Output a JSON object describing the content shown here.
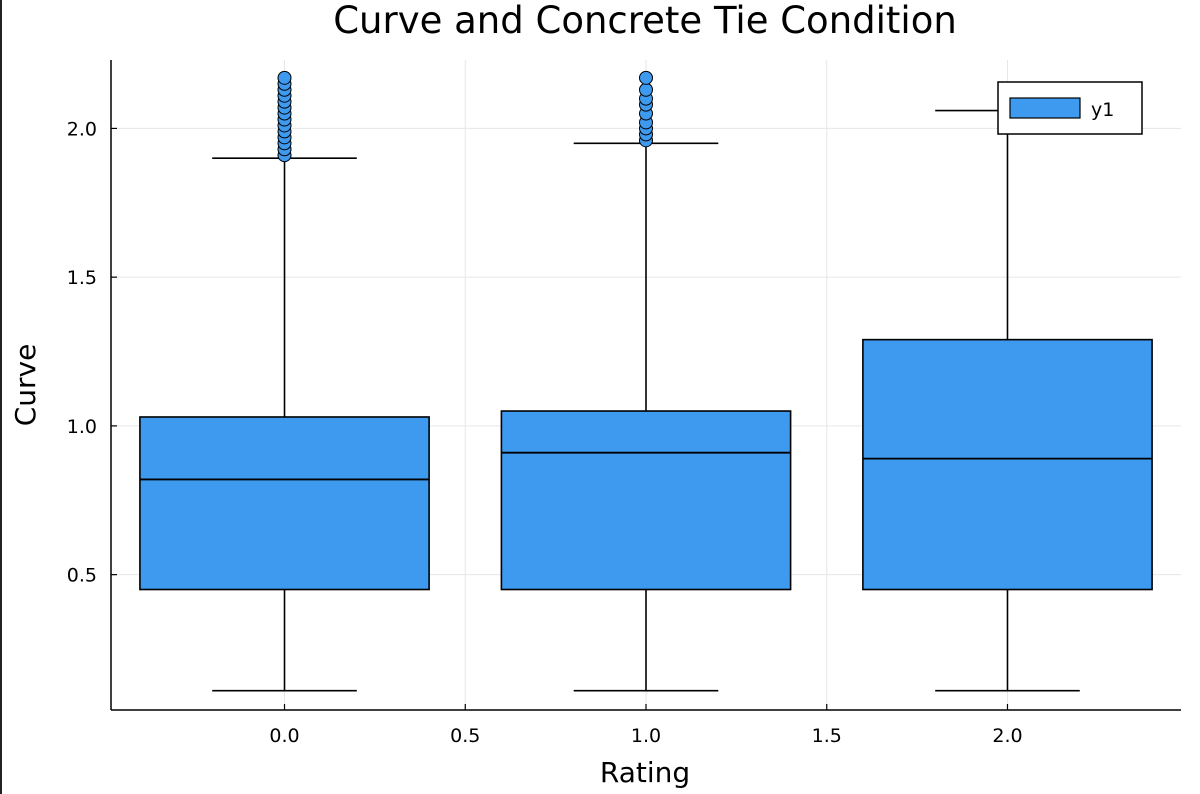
{
  "chart_data": {
    "type": "box",
    "title": "Curve and Concrete Tie Condition",
    "xlabel": "Rating",
    "ylabel": "Curve",
    "xlim": [
      -0.48,
      2.48
    ],
    "ylim": [
      0.045,
      2.23
    ],
    "xticks": [
      0.0,
      0.5,
      1.0,
      1.5,
      2.0
    ],
    "xtick_labels": [
      "0.0",
      "0.5",
      "1.0",
      "1.5",
      "2.0"
    ],
    "yticks": [
      0.5,
      1.0,
      1.5,
      2.0
    ],
    "ytick_labels": [
      "0.5",
      "1.0",
      "1.5",
      "2.0"
    ],
    "grid": true,
    "legend": {
      "position": "top-right",
      "entries": [
        "y1"
      ]
    },
    "series": [
      {
        "name": "y1",
        "color": "#3e9aef",
        "box_width": 0.8,
        "boxes": [
          {
            "x": 0.0,
            "lower_whisker": 0.11,
            "q1": 0.45,
            "median": 0.82,
            "q3": 1.03,
            "upper_whisker": 1.9,
            "outliers": [
              1.91,
              1.93,
              1.95,
              1.97,
              1.99,
              2.01,
              2.03,
              2.05,
              2.07,
              2.09,
              2.11,
              2.13,
              2.15,
              2.17
            ]
          },
          {
            "x": 1.0,
            "lower_whisker": 0.11,
            "q1": 0.45,
            "median": 0.91,
            "q3": 1.05,
            "upper_whisker": 1.95,
            "outliers": [
              1.96,
              1.98,
              2.0,
              2.02,
              2.05,
              2.08,
              2.1,
              2.13,
              2.17
            ]
          },
          {
            "x": 2.0,
            "lower_whisker": 0.11,
            "q1": 0.45,
            "median": 0.89,
            "q3": 1.29,
            "upper_whisker": 2.06,
            "outliers": []
          }
        ]
      }
    ]
  }
}
